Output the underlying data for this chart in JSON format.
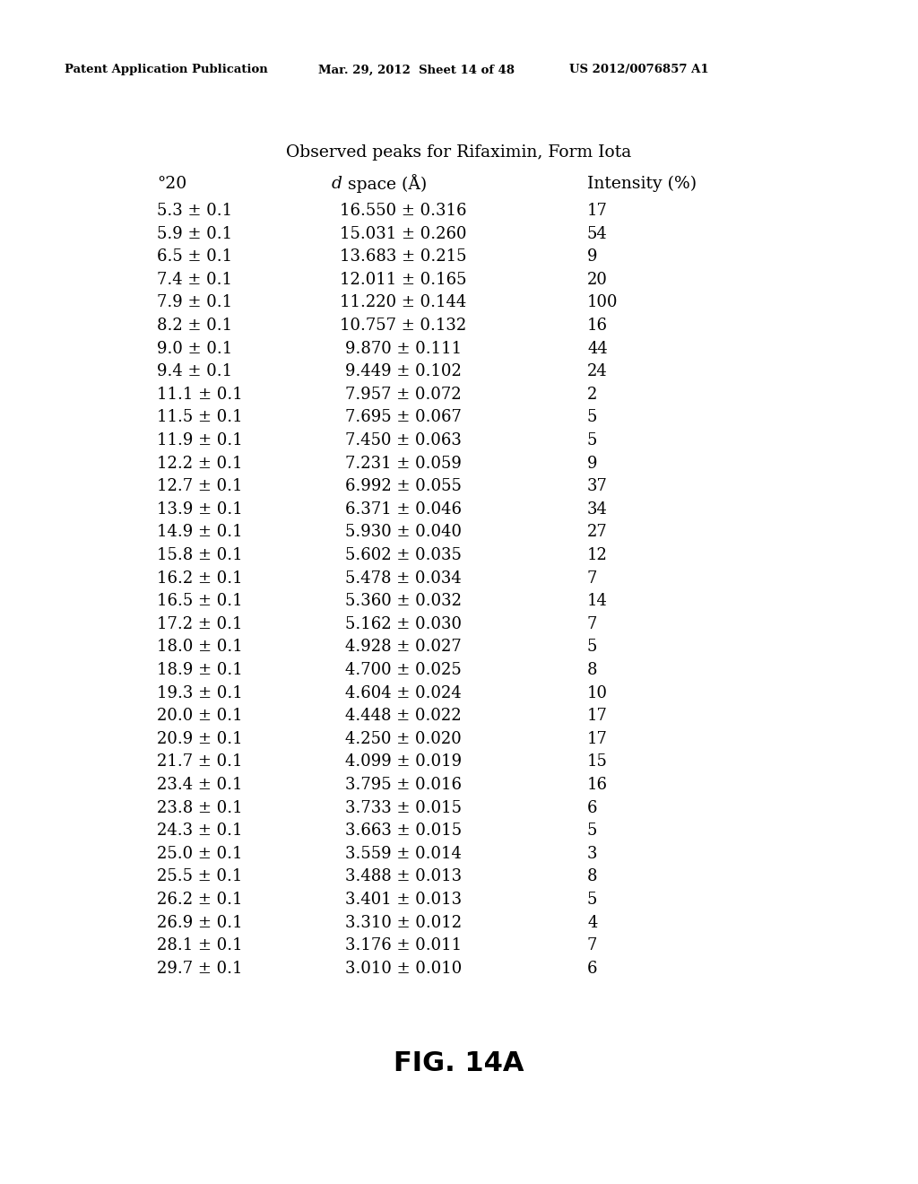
{
  "header_left": "Patent Application Publication",
  "header_mid": "Mar. 29, 2012  Sheet 14 of 48",
  "header_right": "US 2012/0076857 A1",
  "title": "Observed peaks for Rifaximin, Form Iota",
  "col1_header": "°20",
  "col2_header_italic": "d",
  "col2_header_rest": " space (Å)",
  "col3_header": "Intensity (%)",
  "rows": [
    [
      "5.3 ± 0.1",
      "16.550 ± 0.316",
      "17"
    ],
    [
      "5.9 ± 0.1",
      "15.031 ± 0.260",
      "54"
    ],
    [
      "6.5 ± 0.1",
      "13.683 ± 0.215",
      "9"
    ],
    [
      "7.4 ± 0.1",
      "12.011 ± 0.165",
      "20"
    ],
    [
      "7.9 ± 0.1",
      "11.220 ± 0.144",
      "100"
    ],
    [
      "8.2 ± 0.1",
      "10.757 ± 0.132",
      "16"
    ],
    [
      "9.0 ± 0.1",
      "9.870 ± 0.111",
      "44"
    ],
    [
      "9.4 ± 0.1",
      "9.449 ± 0.102",
      "24"
    ],
    [
      "11.1 ± 0.1",
      "7.957 ± 0.072",
      "2"
    ],
    [
      "11.5 ± 0.1",
      "7.695 ± 0.067",
      "5"
    ],
    [
      "11.9 ± 0.1",
      "7.450 ± 0.063",
      "5"
    ],
    [
      "12.2 ± 0.1",
      "7.231 ± 0.059",
      "9"
    ],
    [
      "12.7 ± 0.1",
      "6.992 ± 0.055",
      "37"
    ],
    [
      "13.9 ± 0.1",
      "6.371 ± 0.046",
      "34"
    ],
    [
      "14.9 ± 0.1",
      "5.930 ± 0.040",
      "27"
    ],
    [
      "15.8 ± 0.1",
      "5.602 ± 0.035",
      "12"
    ],
    [
      "16.2 ± 0.1",
      "5.478 ± 0.034",
      "7"
    ],
    [
      "16.5 ± 0.1",
      "5.360 ± 0.032",
      "14"
    ],
    [
      "17.2 ± 0.1",
      "5.162 ± 0.030",
      "7"
    ],
    [
      "18.0 ± 0.1",
      "4.928 ± 0.027",
      "5"
    ],
    [
      "18.9 ± 0.1",
      "4.700 ± 0.025",
      "8"
    ],
    [
      "19.3 ± 0.1",
      "4.604 ± 0.024",
      "10"
    ],
    [
      "20.0 ± 0.1",
      "4.448 ± 0.022",
      "17"
    ],
    [
      "20.9 ± 0.1",
      "4.250 ± 0.020",
      "17"
    ],
    [
      "21.7 ± 0.1",
      "4.099 ± 0.019",
      "15"
    ],
    [
      "23.4 ± 0.1",
      "3.795 ± 0.016",
      "16"
    ],
    [
      "23.8 ± 0.1",
      "3.733 ± 0.015",
      "6"
    ],
    [
      "24.3 ± 0.1",
      "3.663 ± 0.015",
      "5"
    ],
    [
      "25.0 ± 0.1",
      "3.559 ± 0.014",
      "3"
    ],
    [
      "25.5 ± 0.1",
      "3.488 ± 0.013",
      "8"
    ],
    [
      "26.2 ± 0.1",
      "3.401 ± 0.013",
      "5"
    ],
    [
      "26.9 ± 0.1",
      "3.310 ± 0.012",
      "4"
    ],
    [
      "28.1 ± 0.1",
      "3.176 ± 0.011",
      "7"
    ],
    [
      "29.7 ± 0.1",
      "3.010 ± 0.010",
      "6"
    ]
  ],
  "fig_label": "FIG. 14A",
  "background_color": "#ffffff",
  "text_color": "#000000",
  "header_fontsize": 9.5,
  "title_fontsize": 13.5,
  "col_header_fontsize": 13.5,
  "data_fontsize": 13.0,
  "fig_label_fontsize": 22
}
